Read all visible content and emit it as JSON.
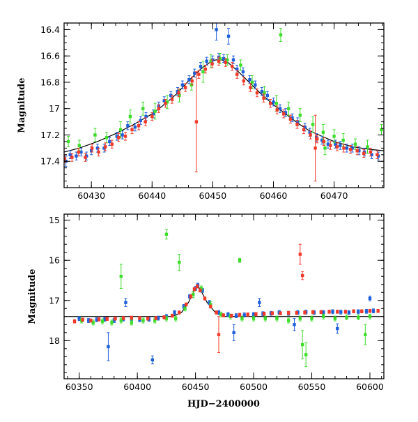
{
  "colors": {
    "blue": "#1f5fd9",
    "green": "#3ddc2a",
    "red": "#f03a2a",
    "model": "#000000"
  },
  "chart_data": [
    {
      "type": "scatter",
      "title": "",
      "xlabel": "",
      "ylabel": "Magnitude",
      "xlim": [
        60425.5,
        60478.2
      ],
      "ylim": [
        17.6,
        16.35
      ],
      "y_inverted": true,
      "xticks": [
        60430,
        60440,
        60450,
        60460,
        60470
      ],
      "yticks": [
        16.4,
        16.6,
        16.8,
        17,
        17.2,
        17.4
      ],
      "ytick_labels": [
        "16.4",
        "16.6",
        "16.8",
        "17",
        "17.2",
        "17.4"
      ],
      "model_curve": {
        "x": [
          60425.5,
          60428,
          60431,
          60434,
          60437,
          60440,
          60442,
          60444,
          60446,
          60448,
          60449.5,
          60450.5,
          60451.5,
          60452.5,
          60454,
          60456,
          60458,
          60460,
          60462,
          60464,
          60466,
          60468,
          60470,
          60473,
          60476,
          60478.2
        ],
        "y": [
          17.33,
          17.3,
          17.25,
          17.19,
          17.12,
          17.04,
          16.97,
          16.89,
          16.79,
          16.7,
          16.65,
          16.63,
          16.63,
          16.65,
          16.71,
          16.8,
          16.89,
          16.97,
          17.04,
          17.11,
          17.17,
          17.21,
          17.25,
          17.29,
          17.31,
          17.32
        ]
      },
      "series": [
        {
          "name": "",
          "color": "blue",
          "x": [
            60425.8,
            60426.5,
            60427.5,
            60428.3,
            60429.2,
            60430.0,
            60431.0,
            60432.1,
            60433.0,
            60434.2,
            60435.1,
            60436.0,
            60437.2,
            60438.1,
            60439.0,
            60440.2,
            60441.1,
            60442.0,
            60443.1,
            60444.2,
            60445.0,
            60446.1,
            60447.0,
            60448.0,
            60449.0,
            60450.0,
            60450.6,
            60451.0,
            60451.8,
            60452.6,
            60453.4,
            60454.0,
            60455.0,
            60456.1,
            60457.0,
            60458.1,
            60459.0,
            60460.0,
            60461.1,
            60462.0,
            60463.1,
            60464.0,
            60465.2,
            60466.0,
            60467.1,
            60468.0,
            60469.0,
            60470.2,
            60471.0,
            60472.1,
            60473.0,
            60474.1,
            60475.0,
            60476.2,
            60477.3
          ],
          "y": [
            17.4,
            17.35,
            17.36,
            17.33,
            17.36,
            17.32,
            17.3,
            17.3,
            17.25,
            17.21,
            17.2,
            17.13,
            17.14,
            17.09,
            17.06,
            17.04,
            16.98,
            16.94,
            16.9,
            16.87,
            16.82,
            16.78,
            16.73,
            16.68,
            16.64,
            16.63,
            16.4,
            16.61,
            16.62,
            16.45,
            16.63,
            16.7,
            16.72,
            16.78,
            16.82,
            16.87,
            16.9,
            16.95,
            17.0,
            17.03,
            17.07,
            17.1,
            17.14,
            17.18,
            17.22,
            17.24,
            17.27,
            17.27,
            17.28,
            17.3,
            17.3,
            17.32,
            17.33,
            17.35,
            17.36
          ],
          "err": [
            0.04,
            0.03,
            0.03,
            0.03,
            0.03,
            0.03,
            0.03,
            0.03,
            0.03,
            0.03,
            0.03,
            0.03,
            0.03,
            0.03,
            0.03,
            0.03,
            0.03,
            0.03,
            0.03,
            0.03,
            0.03,
            0.03,
            0.03,
            0.03,
            0.03,
            0.03,
            0.08,
            0.03,
            0.03,
            0.06,
            0.03,
            0.03,
            0.03,
            0.03,
            0.03,
            0.03,
            0.03,
            0.03,
            0.03,
            0.03,
            0.03,
            0.03,
            0.03,
            0.03,
            0.03,
            0.03,
            0.03,
            0.03,
            0.03,
            0.03,
            0.03,
            0.03,
            0.03,
            0.03,
            0.03
          ]
        },
        {
          "name": "",
          "color": "green",
          "x": [
            60426.2,
            60428.0,
            60430.6,
            60432.5,
            60434.8,
            60436.4,
            60438.5,
            60440.5,
            60442.5,
            60444.5,
            60446.5,
            60448.4,
            60449.7,
            60451.2,
            60452.4,
            60454.6,
            60456.5,
            60458.5,
            60460.5,
            60462.5,
            60464.4,
            60466.5,
            60468.2,
            60470.0,
            60471.5,
            60473.5,
            60475.5,
            60477.8,
            60461.2,
            60468.5
          ],
          "y": [
            17.25,
            17.28,
            17.2,
            17.22,
            17.16,
            17.06,
            17.0,
            17.02,
            16.95,
            16.9,
            16.82,
            16.72,
            16.64,
            16.62,
            16.63,
            16.67,
            16.8,
            16.88,
            16.96,
            17.0,
            17.05,
            17.12,
            17.18,
            17.21,
            17.24,
            17.27,
            17.29,
            17.16,
            16.44,
            17.3
          ],
          "err": [
            0.04,
            0.04,
            0.05,
            0.04,
            0.06,
            0.05,
            0.05,
            0.06,
            0.05,
            0.05,
            0.04,
            0.08,
            0.05,
            0.04,
            0.04,
            0.04,
            0.05,
            0.05,
            0.06,
            0.05,
            0.05,
            0.06,
            0.06,
            0.05,
            0.05,
            0.04,
            0.05,
            0.04,
            0.05,
            0.05
          ]
        },
        {
          "name": "",
          "color": "red",
          "x": [
            60425.6,
            60426.8,
            60427.9,
            60429.0,
            60430.1,
            60431.2,
            60432.3,
            60433.4,
            60434.5,
            60435.6,
            60436.7,
            60437.8,
            60438.9,
            60440.0,
            60441.1,
            60442.2,
            60443.3,
            60444.4,
            60445.5,
            60446.6,
            60447.7,
            60448.8,
            60449.9,
            60451.0,
            60452.1,
            60453.2,
            60454.0,
            60455.1,
            60456.2,
            60457.3,
            60458.4,
            60459.5,
            60460.6,
            60461.7,
            60462.8,
            60463.9,
            60465.0,
            60466.1,
            60467.2,
            60468.3,
            60469.4,
            60470.5,
            60471.6,
            60472.7,
            60473.8,
            60474.9,
            60476.0,
            60477.1,
            60447.3,
            60466.9
          ],
          "y": [
            17.38,
            17.37,
            17.33,
            17.37,
            17.3,
            17.33,
            17.29,
            17.27,
            17.22,
            17.21,
            17.16,
            17.13,
            17.1,
            17.06,
            17.0,
            16.96,
            16.93,
            16.88,
            16.84,
            16.79,
            16.74,
            16.7,
            16.66,
            16.64,
            16.65,
            16.68,
            16.74,
            16.79,
            16.84,
            16.88,
            16.92,
            16.96,
            17.01,
            17.04,
            17.08,
            17.12,
            17.16,
            17.2,
            17.23,
            17.25,
            17.28,
            17.29,
            17.3,
            17.31,
            17.32,
            17.34,
            17.33,
            17.35,
            17.1,
            17.3
          ],
          "err": [
            0.03,
            0.03,
            0.03,
            0.03,
            0.03,
            0.03,
            0.03,
            0.03,
            0.03,
            0.03,
            0.03,
            0.03,
            0.03,
            0.03,
            0.03,
            0.03,
            0.03,
            0.03,
            0.03,
            0.03,
            0.03,
            0.03,
            0.03,
            0.03,
            0.03,
            0.03,
            0.03,
            0.03,
            0.03,
            0.03,
            0.03,
            0.03,
            0.03,
            0.03,
            0.03,
            0.03,
            0.03,
            0.03,
            0.03,
            0.03,
            0.03,
            0.03,
            0.03,
            0.03,
            0.03,
            0.03,
            0.03,
            0.03,
            0.38,
            0.25
          ]
        }
      ]
    },
    {
      "type": "scatter",
      "title": "",
      "xlabel": "HJD−2400000",
      "ylabel": "Magnitude",
      "xlim": [
        60337,
        60612
      ],
      "ylim": [
        18.95,
        14.85
      ],
      "y_inverted": true,
      "xticks": [
        60350,
        60400,
        60450,
        60500,
        60550,
        60600
      ],
      "yticks": [
        15,
        16,
        17,
        18
      ],
      "ytick_labels": [
        "15",
        "16",
        "17",
        "18"
      ],
      "model_curve": {
        "x": [
          60337,
          60430,
          60438,
          60444,
          60449,
          60451.5,
          60454,
          60460,
          60467,
          60475,
          60612
        ],
        "y": [
          17.4,
          17.4,
          17.3,
          17.05,
          16.75,
          16.63,
          16.72,
          17.05,
          17.3,
          17.4,
          17.4
        ]
      },
      "series": [
        {
          "name": "",
          "color": "blue",
          "x": [
            60350,
            60358,
            60365,
            60372,
            60380,
            60388,
            60395,
            60402,
            60410,
            60418,
            60425,
            60432,
            60440,
            60445,
            60450,
            60452,
            60456,
            60462,
            60470,
            60478,
            60485,
            60492,
            60500,
            60508,
            60515,
            60522,
            60530,
            60538,
            60545,
            60552,
            60560,
            60568,
            60575,
            60582,
            60590,
            60597,
            60603,
            60375,
            60390,
            60413,
            60483,
            60505,
            60535,
            60572,
            60600
          ],
          "y": [
            17.45,
            17.5,
            17.48,
            17.47,
            17.5,
            17.46,
            17.45,
            17.48,
            17.47,
            17.44,
            17.4,
            17.3,
            17.15,
            16.9,
            16.7,
            16.62,
            16.75,
            17.05,
            17.3,
            17.35,
            17.38,
            17.36,
            17.35,
            17.33,
            17.32,
            17.3,
            17.32,
            17.3,
            17.29,
            17.3,
            17.3,
            17.28,
            17.29,
            17.3,
            17.28,
            17.27,
            17.26,
            18.15,
            17.05,
            18.48,
            17.8,
            17.05,
            17.6,
            17.7,
            16.95
          ],
          "err": [
            0.05,
            0.05,
            0.05,
            0.05,
            0.05,
            0.05,
            0.05,
            0.05,
            0.05,
            0.05,
            0.05,
            0.05,
            0.05,
            0.05,
            0.05,
            0.05,
            0.05,
            0.05,
            0.05,
            0.05,
            0.05,
            0.05,
            0.05,
            0.05,
            0.05,
            0.05,
            0.05,
            0.05,
            0.05,
            0.05,
            0.05,
            0.05,
            0.05,
            0.05,
            0.05,
            0.05,
            0.05,
            0.35,
            0.1,
            0.1,
            0.2,
            0.1,
            0.15,
            0.12,
            0.06
          ]
        },
        {
          "name": "",
          "color": "green",
          "x": [
            60352,
            60362,
            60370,
            60378,
            60386,
            60395,
            60405,
            60415,
            60425,
            60433,
            60441,
            60448,
            60455,
            60463,
            60472,
            60480,
            60490,
            60500,
            60510,
            60520,
            60530,
            60540,
            60550,
            60560,
            60570,
            60580,
            60590,
            60600,
            60425,
            60436,
            60386,
            60488,
            60542,
            60596,
            60545
          ],
          "y": [
            17.5,
            17.55,
            17.52,
            17.55,
            17.5,
            17.55,
            17.5,
            17.5,
            17.45,
            17.45,
            17.2,
            16.85,
            16.7,
            17.1,
            17.35,
            17.4,
            17.45,
            17.45,
            17.45,
            17.45,
            17.5,
            17.45,
            17.45,
            17.4,
            17.45,
            17.42,
            17.42,
            17.4,
            15.35,
            16.05,
            16.4,
            16.0,
            18.1,
            17.85,
            18.35
          ],
          "err": [
            0.06,
            0.06,
            0.06,
            0.06,
            0.06,
            0.06,
            0.06,
            0.06,
            0.06,
            0.06,
            0.06,
            0.08,
            0.06,
            0.08,
            0.06,
            0.06,
            0.06,
            0.06,
            0.06,
            0.06,
            0.06,
            0.06,
            0.06,
            0.06,
            0.06,
            0.06,
            0.06,
            0.06,
            0.12,
            0.2,
            0.3,
            0.05,
            0.35,
            0.25,
            0.3
          ]
        },
        {
          "name": "",
          "color": "red",
          "x": [
            60346,
            60353,
            60360,
            60367,
            60374,
            60381,
            60388,
            60395,
            60402,
            60409,
            60416,
            60423,
            60430,
            60436,
            60442,
            60446,
            60449,
            60451.5,
            60454,
            60458,
            60463,
            60468,
            60474,
            60481,
            60488,
            60495,
            60502,
            60509,
            60516,
            60523,
            60530,
            60537,
            60544,
            60551,
            60558,
            60565,
            60572,
            60579,
            60586,
            60593,
            60600,
            60607,
            60540,
            60542,
            60470
          ],
          "y": [
            17.52,
            17.48,
            17.5,
            17.47,
            17.46,
            17.45,
            17.44,
            17.43,
            17.44,
            17.45,
            17.44,
            17.42,
            17.38,
            17.3,
            17.1,
            16.9,
            16.72,
            16.65,
            16.75,
            16.95,
            17.15,
            17.3,
            17.37,
            17.38,
            17.36,
            17.35,
            17.34,
            17.33,
            17.32,
            17.32,
            17.31,
            17.31,
            17.3,
            17.29,
            17.29,
            17.28,
            17.28,
            17.28,
            17.27,
            17.27,
            17.26,
            17.26,
            15.85,
            16.38,
            17.85
          ],
          "err": [
            0.04,
            0.04,
            0.04,
            0.04,
            0.04,
            0.04,
            0.04,
            0.04,
            0.04,
            0.04,
            0.04,
            0.04,
            0.04,
            0.04,
            0.04,
            0.04,
            0.04,
            0.04,
            0.04,
            0.04,
            0.04,
            0.04,
            0.04,
            0.04,
            0.04,
            0.04,
            0.04,
            0.04,
            0.04,
            0.04,
            0.04,
            0.04,
            0.04,
            0.04,
            0.04,
            0.04,
            0.04,
            0.04,
            0.04,
            0.04,
            0.04,
            0.04,
            0.25,
            0.1,
            0.45
          ]
        }
      ]
    }
  ]
}
